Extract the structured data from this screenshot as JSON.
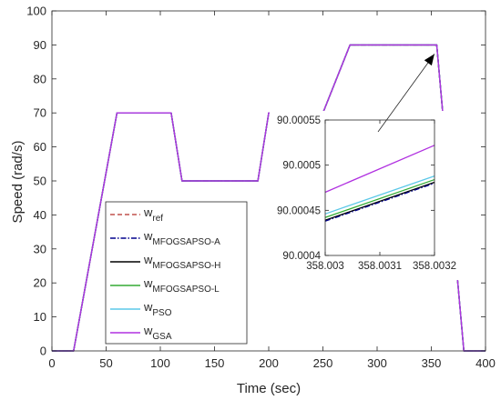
{
  "chart_data": {
    "type": "line",
    "xlabel": "Time (sec)",
    "ylabel": "Speed (rad/s)",
    "xlim": [
      0,
      400
    ],
    "ylim": [
      0,
      100
    ],
    "xticks": [
      0,
      50,
      100,
      150,
      200,
      250,
      300,
      350,
      400
    ],
    "yticks": [
      0,
      10,
      20,
      30,
      40,
      50,
      60,
      70,
      80,
      90,
      100
    ],
    "grid": false,
    "legend_position": "lower-left",
    "series": [
      {
        "name": "ref",
        "color": "#c0504d",
        "dash": "dashed",
        "x": [
          0,
          20,
          60,
          110,
          120,
          190,
          200,
          250,
          275,
          355,
          380,
          400
        ],
        "y": [
          0,
          0,
          70,
          70,
          50,
          50,
          70,
          70,
          90,
          90,
          0,
          0
        ]
      },
      {
        "name": "MFOGSAPSO-A",
        "color": "#00008b",
        "dash": "dashdot",
        "x": [
          0,
          20,
          60,
          110,
          120,
          190,
          200,
          250,
          275,
          355,
          380,
          400
        ],
        "y": [
          0,
          0,
          70,
          70,
          50,
          50,
          70,
          70,
          90,
          90,
          0,
          0
        ]
      },
      {
        "name": "MFOGSAPSO-H",
        "color": "#000000",
        "dash": "solid",
        "x": [
          0,
          20,
          60,
          110,
          120,
          190,
          200,
          250,
          275,
          355,
          380,
          400
        ],
        "y": [
          0,
          0,
          70,
          70,
          50,
          50,
          70,
          70,
          90,
          90,
          0,
          0
        ]
      },
      {
        "name": "MFOGSAPSO-L",
        "color": "#33aa33",
        "dash": "solid",
        "x": [
          0,
          20,
          60,
          110,
          120,
          190,
          200,
          250,
          275,
          355,
          380,
          400
        ],
        "y": [
          0,
          0,
          70,
          70,
          50,
          50,
          70,
          70,
          90,
          90,
          0,
          0
        ]
      },
      {
        "name": "PSO",
        "color": "#5bc8e8",
        "dash": "solid",
        "x": [
          0,
          20,
          60,
          110,
          120,
          190,
          200,
          250,
          275,
          355,
          380,
          400
        ],
        "y": [
          0,
          0,
          70,
          70,
          50,
          50,
          70,
          70,
          90,
          90,
          0,
          0
        ]
      },
      {
        "name": "GSA",
        "color": "#b030e0",
        "dash": "solid",
        "x": [
          0,
          20,
          60,
          110,
          120,
          190,
          200,
          250,
          275,
          355,
          380,
          400
        ],
        "y": [
          0,
          0,
          70,
          70,
          50,
          50,
          70,
          70,
          90,
          90,
          0,
          0
        ]
      }
    ],
    "legend": [
      {
        "base": "w",
        "sub": "ref",
        "color": "#c0504d",
        "dash": "dashed"
      },
      {
        "base": "w",
        "sub": "MFOGSAPSO-A",
        "color": "#00008b",
        "dash": "dashdot"
      },
      {
        "base": "w",
        "sub": "MFOGSAPSO-H",
        "color": "#000000",
        "dash": "solid"
      },
      {
        "base": "w",
        "sub": "MFOGSAPSO-L",
        "color": "#33aa33",
        "dash": "solid"
      },
      {
        "base": "w",
        "sub": "PSO",
        "color": "#5bc8e8",
        "dash": "solid"
      },
      {
        "base": "w",
        "sub": "GSA",
        "color": "#b030e0",
        "dash": "solid"
      }
    ],
    "inset": {
      "xlim": [
        358.003,
        358.0032
      ],
      "ylim": [
        90.0004,
        90.00055
      ],
      "xticks": [
        358.003,
        358.0031,
        358.0032
      ],
      "yticks": [
        90.0004,
        90.00045,
        90.0005,
        90.00055
      ],
      "xtick_labels": [
        "358.003",
        "358.0031",
        "358.0032"
      ],
      "ytick_labels": [
        "90.0004",
        "90.00045",
        "90.0005",
        "90.00055"
      ],
      "series": [
        {
          "name": "GSA",
          "color": "#b030e0",
          "x": [
            358.003,
            358.0032
          ],
          "y": [
            90.00047,
            90.000522
          ]
        },
        {
          "name": "PSO",
          "color": "#5bc8e8",
          "x": [
            358.003,
            358.0032
          ],
          "y": [
            90.000446,
            90.000488
          ]
        },
        {
          "name": "MFOGSAPSO-L",
          "color": "#33aa33",
          "x": [
            358.003,
            358.0032
          ],
          "y": [
            90.000442,
            90.000484
          ]
        },
        {
          "name": "MFOGSAPSO-H",
          "color": "#000000",
          "x": [
            358.003,
            358.0032
          ],
          "y": [
            90.000439,
            90.000481
          ]
        },
        {
          "name": "MFOGSAPSO-A",
          "color": "#00008b",
          "x": [
            358.003,
            358.0032
          ],
          "y": [
            90.000438,
            90.00048
          ]
        }
      ]
    },
    "annotation": {
      "type": "arrow",
      "from": "inset",
      "to_x": 352,
      "to_y": 90
    }
  }
}
